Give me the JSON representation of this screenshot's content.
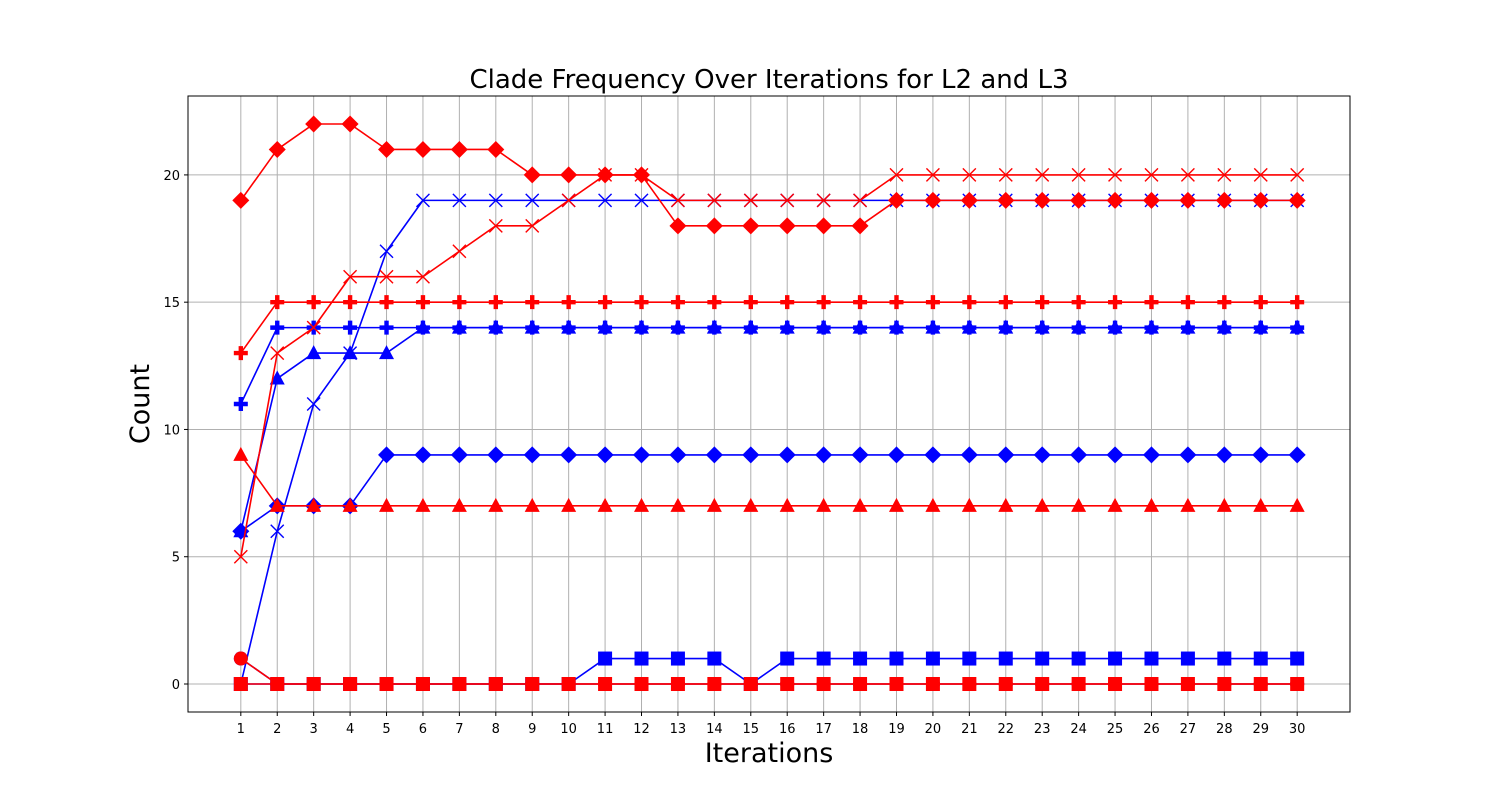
{
  "chart_data": {
    "type": "line",
    "title": "Clade Frequency Over Iterations for L2 and L3",
    "xlabel": "Iterations",
    "ylabel": "Count",
    "x": [
      1,
      2,
      3,
      4,
      5,
      6,
      7,
      8,
      9,
      10,
      11,
      12,
      13,
      14,
      15,
      16,
      17,
      18,
      19,
      20,
      21,
      22,
      23,
      24,
      25,
      26,
      27,
      28,
      29,
      30
    ],
    "xticks": [
      "1",
      "2",
      "3",
      "4",
      "5",
      "6",
      "7",
      "8",
      "9",
      "10",
      "11",
      "12",
      "13",
      "14",
      "15",
      "16",
      "17",
      "18",
      "19",
      "20",
      "21",
      "22",
      "23",
      "24",
      "25",
      "26",
      "27",
      "28",
      "29",
      "30"
    ],
    "yticks": [
      0,
      5,
      10,
      15,
      20
    ],
    "xlim": [
      -0.45,
      31.45
    ],
    "ylim": [
      -1.1,
      23.1
    ],
    "grid": true,
    "series": [
      {
        "color": "#0000ff",
        "marker": "circle",
        "values": [
          1,
          0,
          0,
          0,
          0,
          0,
          0,
          0,
          0,
          0,
          0,
          0,
          0,
          0,
          0,
          0,
          0,
          0,
          0,
          0,
          0,
          0,
          0,
          0,
          0,
          0,
          0,
          0,
          0,
          0
        ]
      },
      {
        "color": "#0000ff",
        "marker": "square",
        "values": [
          0,
          0,
          0,
          0,
          0,
          0,
          0,
          0,
          0,
          0,
          1,
          1,
          1,
          1,
          0,
          1,
          1,
          1,
          1,
          1,
          1,
          1,
          1,
          1,
          1,
          1,
          1,
          1,
          1,
          1
        ]
      },
      {
        "color": "#0000ff",
        "marker": "x",
        "values": [
          0,
          6,
          11,
          13,
          17,
          19,
          19,
          19,
          19,
          19,
          19,
          19,
          19,
          19,
          19,
          19,
          19,
          19,
          19,
          19,
          19,
          19,
          19,
          19,
          19,
          19,
          19,
          19,
          19,
          19
        ]
      },
      {
        "color": "#0000ff",
        "marker": "plus",
        "values": [
          11,
          14,
          14,
          14,
          14,
          14,
          14,
          14,
          14,
          14,
          14,
          14,
          14,
          14,
          14,
          14,
          14,
          14,
          14,
          14,
          14,
          14,
          14,
          14,
          14,
          14,
          14,
          14,
          14,
          14
        ]
      },
      {
        "color": "#0000ff",
        "marker": "triangle",
        "values": [
          6,
          12,
          13,
          13,
          13,
          14,
          14,
          14,
          14,
          14,
          14,
          14,
          14,
          14,
          14,
          14,
          14,
          14,
          14,
          14,
          14,
          14,
          14,
          14,
          14,
          14,
          14,
          14,
          14,
          14
        ]
      },
      {
        "color": "#0000ff",
        "marker": "diamond",
        "values": [
          6,
          7,
          7,
          7,
          9,
          9,
          9,
          9,
          9,
          9,
          9,
          9,
          9,
          9,
          9,
          9,
          9,
          9,
          9,
          9,
          9,
          9,
          9,
          9,
          9,
          9,
          9,
          9,
          9,
          9
        ]
      },
      {
        "color": "#ff0000",
        "marker": "circle",
        "values": [
          1,
          0,
          0,
          0,
          0,
          0,
          0,
          0,
          0,
          0,
          0,
          0,
          0,
          0,
          0,
          0,
          0,
          0,
          0,
          0,
          0,
          0,
          0,
          0,
          0,
          0,
          0,
          0,
          0,
          0
        ]
      },
      {
        "color": "#ff0000",
        "marker": "square",
        "values": [
          0,
          0,
          0,
          0,
          0,
          0,
          0,
          0,
          0,
          0,
          0,
          0,
          0,
          0,
          0,
          0,
          0,
          0,
          0,
          0,
          0,
          0,
          0,
          0,
          0,
          0,
          0,
          0,
          0,
          0
        ]
      },
      {
        "color": "#ff0000",
        "marker": "x",
        "values": [
          5,
          13,
          14,
          16,
          16,
          16,
          17,
          18,
          18,
          19,
          20,
          20,
          19,
          19,
          19,
          19,
          19,
          19,
          20,
          20,
          20,
          20,
          20,
          20,
          20,
          20,
          20,
          20,
          20,
          20
        ]
      },
      {
        "color": "#ff0000",
        "marker": "plus",
        "values": [
          13,
          15,
          15,
          15,
          15,
          15,
          15,
          15,
          15,
          15,
          15,
          15,
          15,
          15,
          15,
          15,
          15,
          15,
          15,
          15,
          15,
          15,
          15,
          15,
          15,
          15,
          15,
          15,
          15,
          15
        ]
      },
      {
        "color": "#ff0000",
        "marker": "triangle",
        "values": [
          9,
          7,
          7,
          7,
          7,
          7,
          7,
          7,
          7,
          7,
          7,
          7,
          7,
          7,
          7,
          7,
          7,
          7,
          7,
          7,
          7,
          7,
          7,
          7,
          7,
          7,
          7,
          7,
          7,
          7
        ]
      },
      {
        "color": "#ff0000",
        "marker": "diamond",
        "values": [
          19,
          21,
          22,
          22,
          21,
          21,
          21,
          21,
          20,
          20,
          20,
          20,
          18,
          18,
          18,
          18,
          18,
          18,
          19,
          19,
          19,
          19,
          19,
          19,
          19,
          19,
          19,
          19,
          19,
          19
        ]
      }
    ]
  }
}
